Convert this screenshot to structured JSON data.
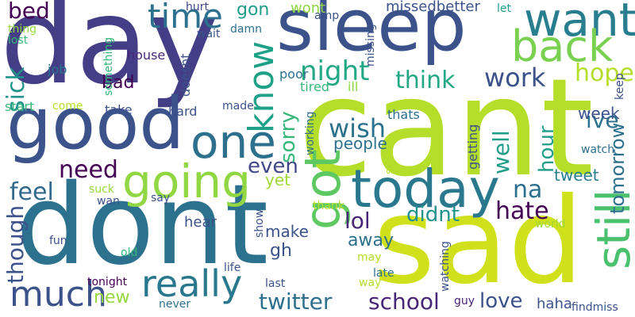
{
  "words": [
    {
      "text": "day",
      "color": "#433e85",
      "vertical": false
    },
    {
      "text": "cant",
      "color": "#b5de2b",
      "vertical": false
    },
    {
      "text": "sleep",
      "color": "#3b528b",
      "vertical": false
    },
    {
      "text": "sad",
      "color": "#d0e11c",
      "vertical": false
    },
    {
      "text": "dont",
      "color": "#2c728e",
      "vertical": false
    },
    {
      "text": "good",
      "color": "#3b528b",
      "vertical": false
    },
    {
      "text": "one",
      "color": "#2d708e",
      "vertical": false
    },
    {
      "text": "want",
      "color": "#287d8e",
      "vertical": false
    },
    {
      "text": "back",
      "color": "#7ad151",
      "vertical": false
    },
    {
      "text": "time",
      "color": "#2c728e",
      "vertical": false
    },
    {
      "text": "today",
      "color": "#2a788e",
      "vertical": false
    },
    {
      "text": "going",
      "color": "#90d743",
      "vertical": false
    },
    {
      "text": "got",
      "color": "#5ec962",
      "vertical": true
    },
    {
      "text": "still",
      "color": "#4ac16d",
      "vertical": true
    },
    {
      "text": "know",
      "color": "#1fa187",
      "vertical": true
    },
    {
      "text": "really",
      "color": "#2a788e",
      "vertical": false
    },
    {
      "text": "much",
      "color": "#3b528b",
      "vertical": false
    },
    {
      "text": "twitter",
      "color": "#2d708e",
      "vertical": false
    },
    {
      "text": "school",
      "color": "#482677",
      "vertical": false
    },
    {
      "text": "night",
      "color": "#22a884",
      "vertical": false
    },
    {
      "text": "think",
      "color": "#22a884",
      "vertical": false
    },
    {
      "text": "work",
      "color": "#3b528b",
      "vertical": false
    },
    {
      "text": "hope",
      "color": "#b5de2b",
      "vertical": false
    },
    {
      "text": "wish",
      "color": "#2c728e",
      "vertical": false
    },
    {
      "text": "need",
      "color": "#440154",
      "vertical": false
    },
    {
      "text": "feel",
      "color": "#31688e",
      "vertical": false
    },
    {
      "text": "even",
      "color": "#404688",
      "vertical": false
    },
    {
      "text": "bed",
      "color": "#440154",
      "vertical": false
    },
    {
      "text": "bad",
      "color": "#440154",
      "vertical": false
    },
    {
      "text": "sick",
      "color": "#20928c",
      "vertical": true
    },
    {
      "text": "sorry",
      "color": "#35b779",
      "vertical": true
    },
    {
      "text": "well",
      "color": "#1f9e89",
      "vertical": true
    },
    {
      "text": "hour",
      "color": "#1f9e89",
      "vertical": true
    },
    {
      "text": "ive",
      "color": "#2c728e",
      "vertical": false
    },
    {
      "text": "week",
      "color": "#3b528b",
      "vertical": false
    },
    {
      "text": "na",
      "color": "#2d708e",
      "vertical": false
    },
    {
      "text": "hate",
      "color": "#440154",
      "vertical": false
    },
    {
      "text": "tomorrow",
      "color": "#2d708e",
      "vertical": true
    },
    {
      "text": "lol",
      "color": "#482677",
      "vertical": false
    },
    {
      "text": "didnt",
      "color": "#20928c",
      "vertical": false
    },
    {
      "text": "love",
      "color": "#3b528b",
      "vertical": false
    },
    {
      "text": "though",
      "color": "#3b528b",
      "vertical": true
    },
    {
      "text": "new",
      "color": "#95d840",
      "vertical": false
    },
    {
      "text": "gon",
      "color": "#1f9e89",
      "vertical": false
    },
    {
      "text": "people",
      "color": "#2d708e",
      "vertical": false
    },
    {
      "text": "away",
      "color": "#2d708e",
      "vertical": false
    },
    {
      "text": "make",
      "color": "#3b528b",
      "vertical": false
    },
    {
      "text": "hear",
      "color": "#3b528b",
      "vertical": false
    },
    {
      "text": "gh",
      "color": "#3b528b",
      "vertical": false
    },
    {
      "text": "yet",
      "color": "#a0da39",
      "vertical": false
    },
    {
      "text": "tweet",
      "color": "#287d8e",
      "vertical": false
    },
    {
      "text": "haha",
      "color": "#3b528b",
      "vertical": false
    },
    {
      "text": "missedbetter",
      "color": "#3b528b",
      "vertical": false
    },
    {
      "text": "wont",
      "color": "#90d743",
      "vertical": false
    },
    {
      "text": "hurt",
      "color": "#404688",
      "vertical": false
    },
    {
      "text": "amp",
      "color": "#3b528b",
      "vertical": false
    },
    {
      "text": "let",
      "color": "#1f9e89",
      "vertical": false
    },
    {
      "text": "damn",
      "color": "#2c728e",
      "vertical": false
    },
    {
      "text": "house",
      "color": "#482677",
      "vertical": false
    },
    {
      "text": "poor",
      "color": "#2c728e",
      "vertical": false
    },
    {
      "text": "tired",
      "color": "#35b779",
      "vertical": false
    },
    {
      "text": "ill",
      "color": "#90d743",
      "vertical": false
    },
    {
      "text": "thats",
      "color": "#2d708e",
      "vertical": false
    },
    {
      "text": "job",
      "color": "#2c728e",
      "vertical": false
    },
    {
      "text": "lost",
      "color": "#35b779",
      "vertical": false
    },
    {
      "text": "thing",
      "color": "#95d840",
      "vertical": false
    },
    {
      "text": "wait",
      "color": "#3b528b",
      "vertical": false
    },
    {
      "text": "start",
      "color": "#35b779",
      "vertical": false
    },
    {
      "text": "come",
      "color": "#b5de2b",
      "vertical": false
    },
    {
      "text": "take",
      "color": "#3b528b",
      "vertical": false
    },
    {
      "text": "hard",
      "color": "#3b528b",
      "vertical": false
    },
    {
      "text": "made",
      "color": "#3b528b",
      "vertical": false
    },
    {
      "text": "watch",
      "color": "#2d708e",
      "vertical": false
    },
    {
      "text": "keep",
      "color": "#3b528b",
      "vertical": true
    },
    {
      "text": "suck",
      "color": "#95d840",
      "vertical": false
    },
    {
      "text": "wan",
      "color": "#3b528b",
      "vertical": false
    },
    {
      "text": "say",
      "color": "#3b528b",
      "vertical": false
    },
    {
      "text": "thank",
      "color": "#b5de2b",
      "vertical": false
    },
    {
      "text": "world",
      "color": "#a0da39",
      "vertical": false
    },
    {
      "text": "fun",
      "color": "#3b528b",
      "vertical": false
    },
    {
      "text": "old",
      "color": "#35b779",
      "vertical": false
    },
    {
      "text": "life",
      "color": "#3b528b",
      "vertical": false
    },
    {
      "text": "show",
      "color": "#3b528b",
      "vertical": true
    },
    {
      "text": "may",
      "color": "#b5de2b",
      "vertical": false
    },
    {
      "text": "late",
      "color": "#2d708e",
      "vertical": false
    },
    {
      "text": "last",
      "color": "#3b528b",
      "vertical": false
    },
    {
      "text": "way",
      "color": "#b5de2b",
      "vertical": false
    },
    {
      "text": "tonight",
      "color": "#440154",
      "vertical": false
    },
    {
      "text": "never",
      "color": "#2d708e",
      "vertical": false
    },
    {
      "text": "guy",
      "color": "#482677",
      "vertical": false
    },
    {
      "text": "findmiss",
      "color": "#3b528b",
      "vertical": false
    },
    {
      "text": "something",
      "color": "#35b779",
      "vertical": true
    },
    {
      "text": "doesnt",
      "color": "#3b528b",
      "vertical": true
    },
    {
      "text": "missing",
      "color": "#3b528b",
      "vertical": true
    },
    {
      "text": "working",
      "color": "#2d708e",
      "vertical": true
    },
    {
      "text": "soon",
      "color": "#b5de2b",
      "vertical": true
    },
    {
      "text": "getting",
      "color": "#3b528b",
      "vertical": true
    },
    {
      "text": "watching",
      "color": "#3b528b",
      "vertical": true
    }
  ]
}
